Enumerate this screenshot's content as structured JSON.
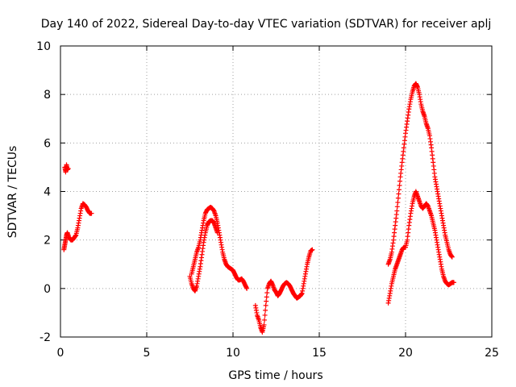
{
  "chart_data": {
    "type": "scatter",
    "title": "Day 140 of 2022, Sidereal Day-to-day VTEC variation (SDTVAR) for receiver aplj",
    "xlabel": "GPS time / hours",
    "ylabel": "SDTVAR / TECUs",
    "xlim": [
      0,
      25
    ],
    "ylim": [
      -2,
      10
    ],
    "xticks": [
      "0",
      "5",
      "10",
      "15",
      "20",
      "25"
    ],
    "yticks": [
      "-2",
      "0",
      "2",
      "4",
      "6",
      "8",
      "10"
    ],
    "grid": true,
    "marker": "plus",
    "color": "#ff0000",
    "series": [
      {
        "segments": [
          [
            [
              0.25,
              5.0
            ],
            [
              0.3,
              4.8
            ],
            [
              0.35,
              5.1
            ],
            [
              0.4,
              4.9
            ],
            [
              0.45,
              4.95
            ]
          ],
          [
            [
              0.2,
              1.6
            ],
            [
              0.25,
              1.8
            ],
            [
              0.3,
              2.0
            ],
            [
              0.35,
              2.2
            ],
            [
              0.4,
              2.3
            ],
            [
              0.5,
              2.1
            ],
            [
              0.6,
              2.0
            ],
            [
              0.7,
              2.0
            ],
            [
              0.8,
              2.1
            ],
            [
              0.9,
              2.2
            ],
            [
              1.0,
              2.5
            ],
            [
              1.1,
              2.9
            ],
            [
              1.2,
              3.3
            ],
            [
              1.3,
              3.5
            ],
            [
              1.4,
              3.45
            ],
            [
              1.5,
              3.35
            ],
            [
              1.6,
              3.2
            ],
            [
              1.7,
              3.1
            ],
            [
              1.8,
              3.1
            ]
          ],
          [
            [
              7.5,
              0.5
            ],
            [
              7.6,
              0.2
            ],
            [
              7.7,
              0.0
            ],
            [
              7.8,
              -0.1
            ],
            [
              7.9,
              0.1
            ],
            [
              8.0,
              0.5
            ],
            [
              8.1,
              0.9
            ],
            [
              8.2,
              1.4
            ],
            [
              8.3,
              1.9
            ],
            [
              8.4,
              2.3
            ],
            [
              8.5,
              2.6
            ],
            [
              8.6,
              2.75
            ],
            [
              8.7,
              2.8
            ],
            [
              8.8,
              2.8
            ],
            [
              8.9,
              2.7
            ],
            [
              9.0,
              2.5
            ],
            [
              9.1,
              2.3
            ]
          ],
          [
            [
              7.6,
              0.6
            ],
            [
              7.7,
              0.9
            ],
            [
              7.8,
              1.2
            ],
            [
              7.9,
              1.5
            ],
            [
              8.0,
              1.7
            ],
            [
              8.1,
              2.0
            ],
            [
              8.2,
              2.4
            ],
            [
              8.3,
              2.8
            ],
            [
              8.4,
              3.1
            ],
            [
              8.5,
              3.25
            ],
            [
              8.6,
              3.3
            ],
            [
              8.7,
              3.35
            ],
            [
              8.8,
              3.3
            ],
            [
              8.9,
              3.2
            ],
            [
              9.0,
              3.0
            ],
            [
              9.1,
              2.7
            ],
            [
              9.2,
              2.3
            ],
            [
              9.3,
              1.9
            ],
            [
              9.4,
              1.5
            ],
            [
              9.5,
              1.2
            ],
            [
              9.6,
              1.0
            ],
            [
              9.7,
              0.9
            ],
            [
              9.8,
              0.85
            ],
            [
              9.9,
              0.8
            ],
            [
              10.0,
              0.75
            ],
            [
              10.1,
              0.6
            ],
            [
              10.2,
              0.45
            ],
            [
              10.3,
              0.35
            ],
            [
              10.4,
              0.35
            ],
            [
              10.5,
              0.4
            ],
            [
              10.6,
              0.3
            ],
            [
              10.7,
              0.15
            ],
            [
              10.8,
              0.0
            ]
          ],
          [
            [
              11.3,
              -0.7
            ],
            [
              11.4,
              -1.1
            ],
            [
              11.5,
              -1.3
            ],
            [
              11.6,
              -1.6
            ],
            [
              11.7,
              -1.8
            ],
            [
              11.8,
              -1.5
            ],
            [
              11.9,
              -0.7
            ],
            [
              12.0,
              0.0
            ],
            [
              12.1,
              0.2
            ],
            [
              12.2,
              0.3
            ],
            [
              12.3,
              0.15
            ],
            [
              12.4,
              -0.05
            ],
            [
              12.5,
              -0.15
            ],
            [
              12.6,
              -0.3
            ],
            [
              12.7,
              -0.2
            ],
            [
              12.8,
              -0.05
            ],
            [
              12.9,
              0.1
            ],
            [
              13.0,
              0.2
            ],
            [
              13.1,
              0.25
            ],
            [
              13.2,
              0.2
            ],
            [
              13.3,
              0.1
            ],
            [
              13.4,
              -0.05
            ],
            [
              13.5,
              -0.2
            ],
            [
              13.6,
              -0.3
            ],
            [
              13.7,
              -0.4
            ],
            [
              13.8,
              -0.35
            ],
            [
              13.9,
              -0.3
            ],
            [
              14.0,
              -0.2
            ],
            [
              14.1,
              0.2
            ],
            [
              14.2,
              0.6
            ],
            [
              14.3,
              1.0
            ],
            [
              14.4,
              1.3
            ],
            [
              14.5,
              1.55
            ],
            [
              14.6,
              1.6
            ]
          ],
          [
            [
              19.0,
              -0.6
            ],
            [
              19.1,
              -0.2
            ],
            [
              19.2,
              0.2
            ],
            [
              19.3,
              0.5
            ],
            [
              19.4,
              0.8
            ],
            [
              19.5,
              1.0
            ],
            [
              19.6,
              1.2
            ],
            [
              19.7,
              1.4
            ],
            [
              19.8,
              1.6
            ],
            [
              19.9,
              1.7
            ],
            [
              20.0,
              1.7
            ],
            [
              20.1,
              2.0
            ],
            [
              20.2,
              2.6
            ],
            [
              20.3,
              3.1
            ],
            [
              20.4,
              3.5
            ],
            [
              20.5,
              3.8
            ],
            [
              20.6,
              4.0
            ],
            [
              20.7,
              3.8
            ],
            [
              20.8,
              3.6
            ],
            [
              20.9,
              3.4
            ],
            [
              21.0,
              3.3
            ],
            [
              21.1,
              3.4
            ],
            [
              21.2,
              3.5
            ],
            [
              21.3,
              3.4
            ],
            [
              21.4,
              3.2
            ],
            [
              21.5,
              3.0
            ],
            [
              21.6,
              2.7
            ],
            [
              21.7,
              2.4
            ],
            [
              21.8,
              2.0
            ],
            [
              21.9,
              1.6
            ],
            [
              22.0,
              1.2
            ],
            [
              22.1,
              0.8
            ],
            [
              22.2,
              0.5
            ],
            [
              22.3,
              0.3
            ],
            [
              22.4,
              0.2
            ],
            [
              22.5,
              0.15
            ],
            [
              22.6,
              0.2
            ],
            [
              22.7,
              0.25
            ],
            [
              22.8,
              0.25
            ]
          ],
          [
            [
              19.0,
              1.0
            ],
            [
              19.1,
              1.2
            ],
            [
              19.2,
              1.5
            ],
            [
              19.3,
              2.0
            ],
            [
              19.4,
              2.6
            ],
            [
              19.5,
              3.2
            ],
            [
              19.6,
              3.9
            ],
            [
              19.7,
              4.6
            ],
            [
              19.8,
              5.2
            ],
            [
              19.9,
              5.8
            ],
            [
              20.0,
              6.4
            ],
            [
              20.1,
              6.9
            ],
            [
              20.2,
              7.4
            ],
            [
              20.3,
              7.8
            ],
            [
              20.4,
              8.1
            ],
            [
              20.5,
              8.35
            ],
            [
              20.6,
              8.45
            ],
            [
              20.7,
              8.3
            ],
            [
              20.8,
              8.0
            ],
            [
              20.9,
              7.6
            ],
            [
              21.0,
              7.3
            ],
            [
              21.1,
              7.1
            ],
            [
              21.2,
              6.8
            ],
            [
              21.3,
              6.6
            ],
            [
              21.4,
              6.3
            ],
            [
              21.5,
              5.8
            ],
            [
              21.6,
              5.2
            ],
            [
              21.7,
              4.6
            ],
            [
              21.8,
              4.2
            ],
            [
              21.9,
              3.8
            ],
            [
              22.0,
              3.4
            ],
            [
              22.1,
              3.0
            ],
            [
              22.2,
              2.6
            ],
            [
              22.3,
              2.2
            ],
            [
              22.4,
              1.9
            ],
            [
              22.5,
              1.6
            ],
            [
              22.6,
              1.4
            ],
            [
              22.7,
              1.3
            ]
          ]
        ]
      }
    ]
  }
}
